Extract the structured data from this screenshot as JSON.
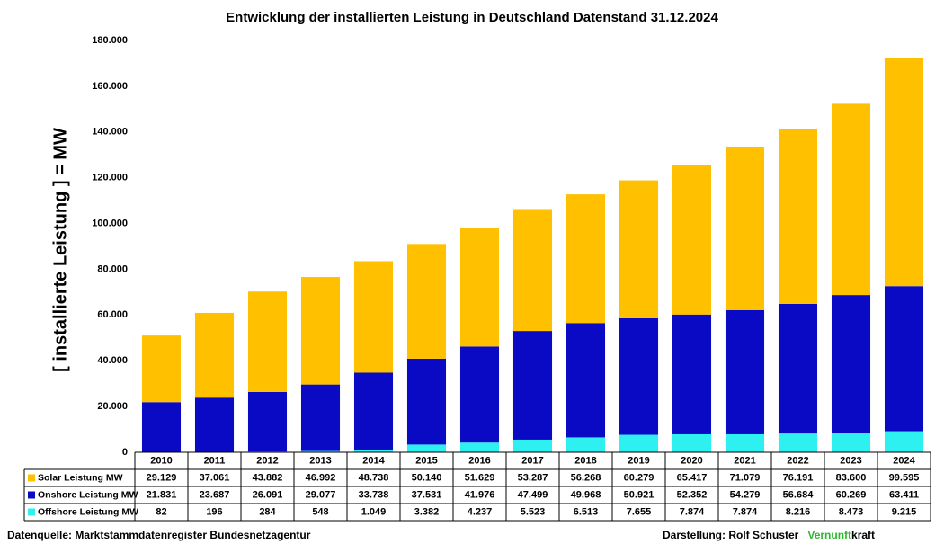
{
  "chart_data": {
    "type": "stacked_bar",
    "title": "Entwicklung der installierten Leistung in Deutschland  Datenstand  31.12.2024",
    "y_label": "[ installierte Leistung ] = MW",
    "categories": [
      "2010",
      "2011",
      "2012",
      "2013",
      "2014",
      "2015",
      "2016",
      "2017",
      "2018",
      "2019",
      "2020",
      "2021",
      "2022",
      "2023",
      "2024"
    ],
    "series": [
      {
        "name": "Solar Leistung MW",
        "color": "#ffc000",
        "values": [
          29129,
          37061,
          43882,
          46992,
          48738,
          50140,
          51629,
          53287,
          56268,
          60279,
          65417,
          71079,
          76191,
          83600,
          99595
        ],
        "value_labels": [
          "29.129",
          "37.061",
          "43.882",
          "46.992",
          "48.738",
          "50.140",
          "51.629",
          "53.287",
          "56.268",
          "60.279",
          "65.417",
          "71.079",
          "76.191",
          "83.600",
          "99.595"
        ]
      },
      {
        "name": "Onshore Leistung MW",
        "color": "#0a0ac4",
        "values": [
          21831,
          23687,
          26091,
          29077,
          33738,
          37531,
          41976,
          47499,
          49968,
          50921,
          52352,
          54279,
          56684,
          60269,
          63411
        ],
        "value_labels": [
          "21.831",
          "23.687",
          "26.091",
          "29.077",
          "33.738",
          "37.531",
          "41.976",
          "47.499",
          "49.968",
          "50.921",
          "52.352",
          "54.279",
          "56.684",
          "60.269",
          "63.411"
        ]
      },
      {
        "name": "Offshore Leistung MW",
        "color": "#2ef0f0",
        "values": [
          82,
          196,
          284,
          548,
          1049,
          3382,
          4237,
          5523,
          6513,
          7655,
          7874,
          7874,
          8216,
          8473,
          9215
        ],
        "value_labels": [
          "82",
          "196",
          "284",
          "548",
          "1.049",
          "3.382",
          "4.237",
          "5.523",
          "6.513",
          "7.655",
          "7.874",
          "7.874",
          "8.216",
          "8.473",
          "9.215"
        ]
      }
    ],
    "ylim": [
      0,
      180000
    ],
    "yticks": [
      0,
      {
        "value": 20000,
        "label": "20.000"
      },
      {
        "value": 40000,
        "label": "40.000"
      },
      {
        "value": 60000,
        "label": "60.000"
      },
      {
        "value": 80000,
        "label": "80.000"
      },
      {
        "value": 100000,
        "label": "100.000"
      },
      {
        "value": 120000,
        "label": "120.000"
      },
      {
        "value": 140000,
        "label": "140.000"
      },
      {
        "value": 160000,
        "label": "160.000"
      },
      {
        "value": 180000,
        "label": "180.000"
      }
    ],
    "grid": false,
    "source": "Datenquelle: Marktstammdatenregister Bundesnetzagentur",
    "credit": "Darstellung:  Rolf Schuster",
    "brand_highlight": "Vernunft",
    "brand_rest": "kraft"
  }
}
